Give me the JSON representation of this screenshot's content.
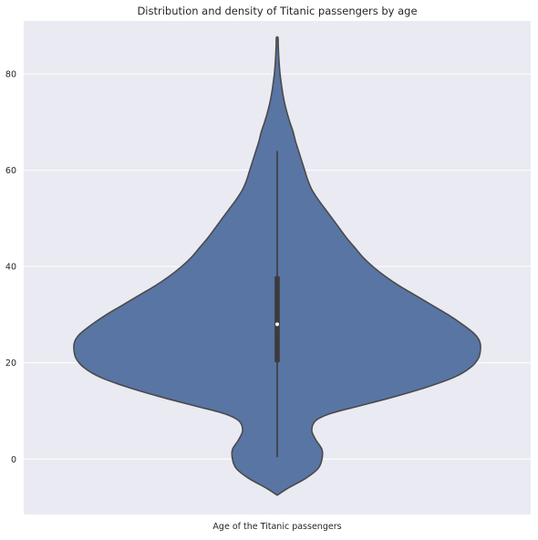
{
  "chart_data": {
    "type": "violin",
    "title": "Distribution and density of Titanic passengers by age",
    "xlabel": "Age of the Titanic passengers",
    "ylabel": "",
    "ylim": [
      -11.5,
      91
    ],
    "yticks": [
      0,
      20,
      40,
      60,
      80
    ],
    "grid": true,
    "colors": {
      "background": "#eaeaf2",
      "grid": "#ffffff",
      "violin_fill": "#5975a4",
      "violin_edge": "#4a4a4a",
      "box": "#3b3b3b",
      "median": "#ffffff"
    },
    "density_profile": {
      "description_units": "age (years) vs relative half-width (0-1)",
      "age": [
        -7.5,
        -6,
        -4,
        -2,
        0,
        2,
        4,
        6,
        8,
        9.5,
        11,
        13,
        15,
        17,
        19,
        21,
        23,
        24.5,
        26,
        28,
        30,
        32,
        34,
        36,
        38,
        40,
        42,
        44,
        46,
        48,
        50,
        52,
        54,
        56,
        58,
        60,
        62,
        64,
        66,
        68,
        70,
        72,
        74,
        76,
        78,
        80,
        82,
        84,
        86,
        87.5
      ],
      "half_width": [
        0.0,
        0.055,
        0.14,
        0.2,
        0.22,
        0.22,
        0.19,
        0.17,
        0.19,
        0.265,
        0.4,
        0.58,
        0.74,
        0.87,
        0.95,
        0.99,
        1.0,
        0.995,
        0.97,
        0.91,
        0.84,
        0.76,
        0.68,
        0.6,
        0.53,
        0.47,
        0.42,
        0.38,
        0.34,
        0.305,
        0.27,
        0.235,
        0.2,
        0.17,
        0.15,
        0.135,
        0.12,
        0.105,
        0.09,
        0.078,
        0.062,
        0.048,
        0.036,
        0.027,
        0.02,
        0.014,
        0.01,
        0.007,
        0.005,
        0.004
      ]
    },
    "box": {
      "whisker_low": 0.42,
      "q1": 20.1,
      "median": 28,
      "q3": 38,
      "whisker_high": 64
    }
  }
}
